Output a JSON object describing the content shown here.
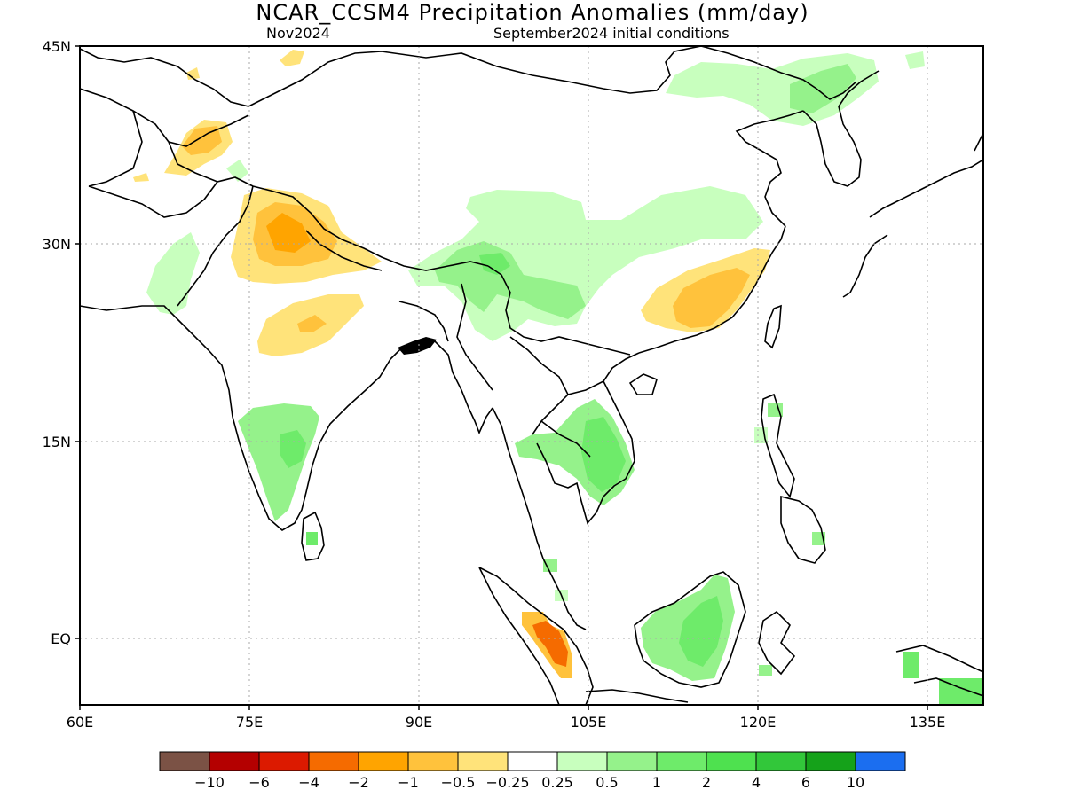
{
  "title": "NCAR_CCSM4 Precipitation Anomalies (mm/day)",
  "subtitle_left": "Nov2024",
  "subtitle_right": "September2024 initial conditions",
  "lat_ticks": [
    {
      "value": 45,
      "label": "45N"
    },
    {
      "value": 30,
      "label": "30N"
    },
    {
      "value": 15,
      "label": "15N"
    },
    {
      "value": 0,
      "label": "EQ"
    }
  ],
  "lon_ticks": [
    {
      "value": 60,
      "label": "60E"
    },
    {
      "value": 75,
      "label": "75E"
    },
    {
      "value": 90,
      "label": "90E"
    },
    {
      "value": 105,
      "label": "105E"
    },
    {
      "value": 120,
      "label": "120E"
    },
    {
      "value": 135,
      "label": "135E"
    }
  ],
  "extent": {
    "lon": [
      60,
      140
    ],
    "lat": [
      -5,
      45
    ]
  },
  "colorbar": {
    "colors": [
      "#7b5245",
      "#b40000",
      "#dc1a00",
      "#f56b00",
      "#ffa400",
      "#ffc23c",
      "#ffe37a",
      "#ffffff",
      "#c8ffbe",
      "#95f28b",
      "#6eeb6a",
      "#4ee14f",
      "#32c73a",
      "#15a21a",
      "#1b6ef0"
    ],
    "labels": [
      "-10",
      "-6",
      "-4",
      "-2",
      "-1",
      "-0.5",
      "-0.25",
      "0.25",
      "0.5",
      "1",
      "2",
      "4",
      "6",
      "10"
    ]
  }
}
